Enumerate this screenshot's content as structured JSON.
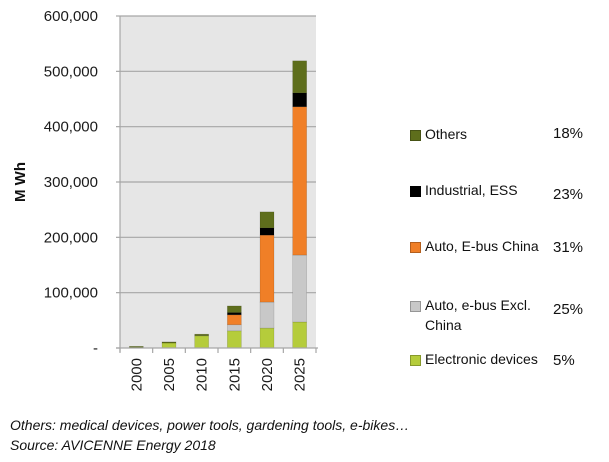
{
  "chart_data": {
    "type": "bar",
    "stacked": true,
    "categories": [
      "2000",
      "2005",
      "2010",
      "2015",
      "2020",
      "2025"
    ],
    "ylabel": "M Wh",
    "xlabel": "",
    "title": "",
    "ylim": [
      0,
      600000
    ],
    "yticks": [
      0,
      100000,
      200000,
      300000,
      400000,
      500000,
      600000
    ],
    "ytick_labels": [
      "-",
      "100,000",
      "200,000",
      "300,000",
      "400,000",
      "500,000",
      "600,000"
    ],
    "grid": true,
    "legend_position": "right",
    "series": [
      {
        "name": "Electronic devices",
        "pct": "5%",
        "color": "#b5cc3b",
        "values": [
          0,
          9000,
          22000,
          31000,
          36000,
          47000
        ]
      },
      {
        "name": "Auto, e-bus Excl. China",
        "pct": "25%",
        "color": "#c8c8c8",
        "values": [
          0,
          0,
          0,
          11000,
          47000,
          121000
        ]
      },
      {
        "name": "Auto, E-bus China",
        "pct": "31%",
        "color": "#f07f27",
        "values": [
          0,
          0,
          0,
          18000,
          121000,
          268000
        ]
      },
      {
        "name": "Industrial, ESS",
        "pct": "23%",
        "color": "#000000",
        "values": [
          0,
          0,
          0,
          4000,
          13000,
          25000
        ]
      },
      {
        "name": "Others",
        "pct": "18%",
        "color": "#5e6e1c",
        "values": [
          3000,
          2000,
          3000,
          12000,
          29000,
          58000
        ]
      }
    ]
  },
  "legend": {
    "items": [
      {
        "label": "Others",
        "pct": "18%",
        "color": "#5e6e1c"
      },
      {
        "label": "Industrial, ESS",
        "pct": "23%",
        "color": "#000000"
      },
      {
        "label": "Auto, E-bus China",
        "pct": "31%",
        "color": "#f07f27"
      },
      {
        "label_line1": "Auto, e-bus Excl.",
        "label_line2": "China",
        "pct": "25%",
        "color": "#c8c8c8"
      },
      {
        "label": "Electronic devices",
        "pct": "5%",
        "color": "#b5cc3b"
      }
    ]
  },
  "notes": {
    "line1": "Others: medical devices, power tools, gardening tools, e-bikes…",
    "line2": "Source: AVICENNE Energy 2018"
  },
  "colors": {
    "plot_bg": "#e6e6e6",
    "grid": "#a6a6a6"
  }
}
